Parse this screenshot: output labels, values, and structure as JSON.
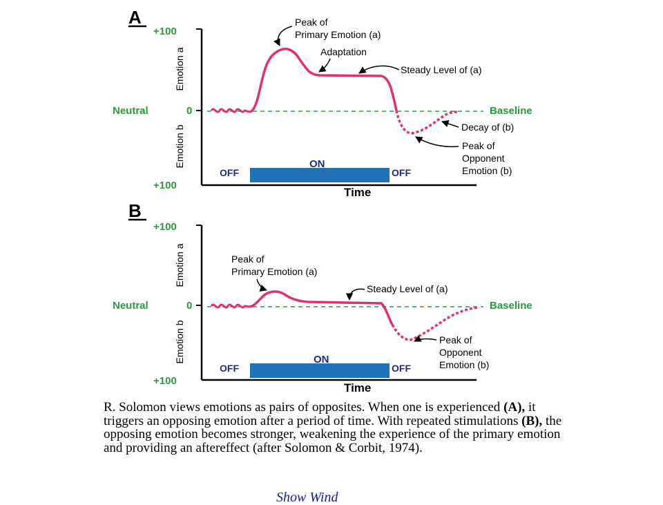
{
  "colors": {
    "axis": "#000000",
    "curve": "#e0306f",
    "green": "#2a9a40",
    "navy": "#1b2a8a",
    "bar": "#1f72b8"
  },
  "panels": [
    {
      "letter": "A",
      "ytop": "+100",
      "ybottom": "+100",
      "neutral_label": "Neutral",
      "zero": "0",
      "emotion_a": "Emotion a",
      "emotion_b": "Emotion b",
      "baseline": "Baseline",
      "off_left": "OFF",
      "on": "ON",
      "off_right": "OFF",
      "xlabel": "Time",
      "annotations": {
        "peak1": "Peak of",
        "peak2": "Primary Emotion (a)",
        "adaptation": "Adaptation",
        "steady": "Steady Level of (a)",
        "decay": "Decay of (b)",
        "opp1": "Peak of",
        "opp2": "Opponent",
        "opp3": "Emotion (b)"
      }
    },
    {
      "letter": "B",
      "ytop": "+100",
      "ybottom": "+100",
      "neutral_label": "Neutral",
      "zero": "0",
      "emotion_a": "Emotion a",
      "emotion_b": "Emotion b",
      "baseline": "Baseline",
      "off_left": "OFF",
      "on": "ON",
      "off_right": "OFF",
      "xlabel": "Time",
      "annotations": {
        "peak1": "Peak of",
        "peak2": "Primary Emotion (a)",
        "steady": "Steady Level of (a)",
        "opp1": "Peak of",
        "opp2": "Opponent",
        "opp3": "Emotion (b)"
      }
    }
  ],
  "caption": {
    "t1": "R. Solomon views emotions as pairs of opposites. When one is experienced ",
    "b1": "(A),",
    "t2": " it triggers an opposing emotion after a period of time. With repeated stimulations ",
    "b2": "(B),",
    "t3": " the opposing emotion becomes stronger, weakening the experience of the primary emotion and providing an aftereffect (after Solomon & Corbit, 1974)."
  },
  "cut_text": "Show Wind"
}
